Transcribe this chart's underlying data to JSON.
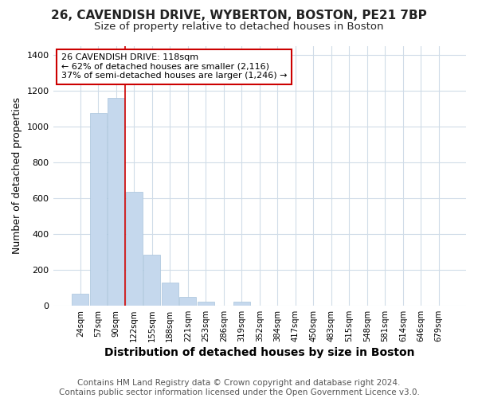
{
  "title1": "26, CAVENDISH DRIVE, WYBERTON, BOSTON, PE21 7BP",
  "title2": "Size of property relative to detached houses in Boston",
  "xlabel": "Distribution of detached houses by size in Boston",
  "ylabel": "Number of detached properties",
  "categories": [
    "24sqm",
    "57sqm",
    "90sqm",
    "122sqm",
    "155sqm",
    "188sqm",
    "221sqm",
    "253sqm",
    "286sqm",
    "319sqm",
    "352sqm",
    "384sqm",
    "417sqm",
    "450sqm",
    "483sqm",
    "515sqm",
    "548sqm",
    "581sqm",
    "614sqm",
    "646sqm",
    "679sqm"
  ],
  "values": [
    65,
    1075,
    1160,
    635,
    285,
    130,
    47,
    20,
    0,
    20,
    0,
    0,
    0,
    0,
    0,
    0,
    0,
    0,
    0,
    0,
    0
  ],
  "bar_color": "#c5d8ed",
  "bar_edge_color": "#a8c4dc",
  "vline_x": 3,
  "vline_color": "#cc0000",
  "annotation_line1": "26 CAVENDISH DRIVE: 118sqm",
  "annotation_line2": "← 62% of detached houses are smaller (2,116)",
  "annotation_line3": "37% of semi-detached houses are larger (1,246) →",
  "annotation_box_color": "#ffffff",
  "annotation_box_edge": "#cc0000",
  "ylim": [
    0,
    1450
  ],
  "yticks": [
    0,
    200,
    400,
    600,
    800,
    1000,
    1200,
    1400
  ],
  "footer": "Contains HM Land Registry data © Crown copyright and database right 2024.\nContains public sector information licensed under the Open Government Licence v3.0.",
  "bg_color": "#ffffff",
  "plot_bg_color": "#ffffff",
  "title1_fontsize": 11,
  "title2_fontsize": 9.5,
  "xlabel_fontsize": 10,
  "ylabel_fontsize": 9,
  "footer_fontsize": 7.5,
  "grid_color": "#d0dce8"
}
